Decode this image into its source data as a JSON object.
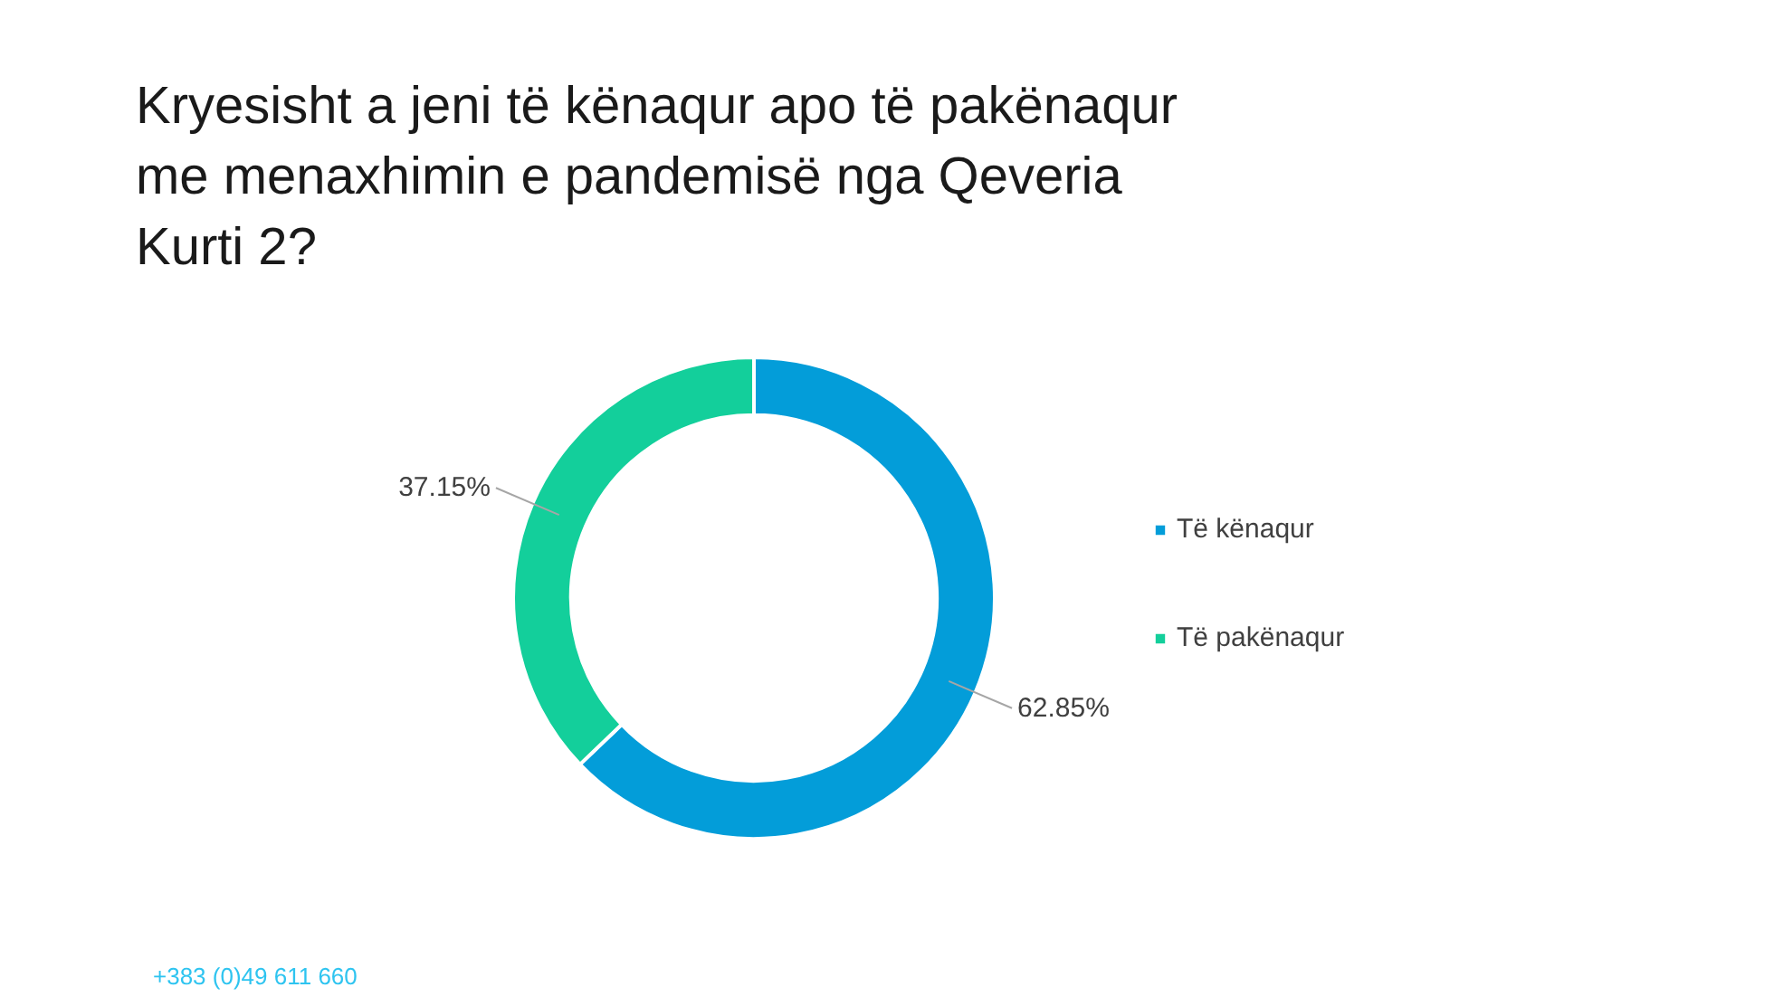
{
  "chart_data": {
    "type": "donut",
    "title": "Kryesisht a jeni të kënaqur apo të pakënaqur me menaxhimin e pandemisë nga Qeveria Kurti 2?",
    "categories": [
      "Të kënaqur",
      "Të pakënaqur"
    ],
    "values": [
      62.85,
      37.15
    ],
    "colors": [
      "#039dd9",
      "#13cf9b"
    ],
    "value_labels": [
      "62.85%",
      "37.15%"
    ],
    "legend": "right",
    "annotations": [
      "+383 (0)49 611 660"
    ]
  }
}
